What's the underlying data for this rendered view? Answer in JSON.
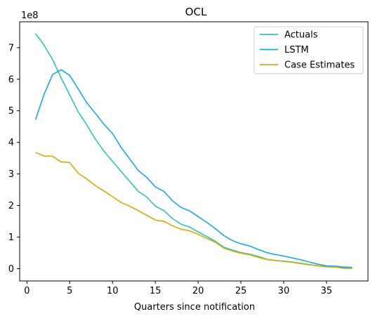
{
  "chart_data": {
    "type": "line",
    "title": "OCL",
    "xlabel": "Quarters since notification",
    "ylabel": "",
    "y_offset_label": "1e8",
    "xlim": [
      -0.85,
      39.85
    ],
    "ylim": [
      -0.39,
      7.82
    ],
    "x_ticks": [
      0,
      5,
      10,
      15,
      20,
      25,
      30,
      35
    ],
    "y_ticks": [
      0,
      1,
      2,
      3,
      4,
      5,
      6,
      7
    ],
    "legend_position": "top-right",
    "grid": false,
    "x": [
      1,
      2,
      3,
      4,
      5,
      6,
      7,
      8,
      9,
      10,
      11,
      12,
      13,
      14,
      15,
      16,
      17,
      18,
      19,
      20,
      21,
      22,
      23,
      24,
      25,
      26,
      27,
      28,
      29,
      30,
      31,
      32,
      33,
      34,
      35,
      36,
      37,
      38
    ],
    "series": [
      {
        "name": "Actuals",
        "color": "#2ec4b6",
        "values": [
          7.45,
          7.08,
          6.62,
          6.04,
          5.5,
          4.96,
          4.55,
          4.1,
          3.72,
          3.4,
          3.08,
          2.77,
          2.45,
          2.27,
          1.98,
          1.84,
          1.59,
          1.41,
          1.32,
          1.17,
          1.02,
          0.87,
          0.68,
          0.59,
          0.51,
          0.46,
          0.39,
          0.3,
          0.26,
          0.24,
          0.21,
          0.17,
          0.13,
          0.09,
          0.06,
          0.05,
          0.03,
          0.02
        ]
      },
      {
        "name": "LSTM",
        "color": "#1ca6e0",
        "values": [
          4.72,
          5.52,
          6.15,
          6.3,
          6.12,
          5.69,
          5.25,
          4.92,
          4.57,
          4.28,
          3.84,
          3.48,
          3.11,
          2.89,
          2.59,
          2.45,
          2.15,
          1.94,
          1.83,
          1.65,
          1.47,
          1.27,
          1.05,
          0.89,
          0.79,
          0.72,
          0.61,
          0.51,
          0.45,
          0.4,
          0.34,
          0.28,
          0.21,
          0.14,
          0.09,
          0.08,
          0.05,
          0.04
        ]
      },
      {
        "name": "Case Estimates",
        "color": "#d4aa10",
        "values": [
          3.68,
          3.57,
          3.56,
          3.38,
          3.36,
          3.02,
          2.84,
          2.63,
          2.46,
          2.28,
          2.1,
          1.98,
          1.84,
          1.69,
          1.54,
          1.5,
          1.36,
          1.25,
          1.2,
          1.09,
          0.96,
          0.84,
          0.65,
          0.56,
          0.49,
          0.44,
          0.36,
          0.29,
          0.26,
          0.23,
          0.2,
          0.16,
          0.12,
          0.09,
          0.06,
          0.05,
          0.01,
          0.01
        ]
      }
    ]
  }
}
